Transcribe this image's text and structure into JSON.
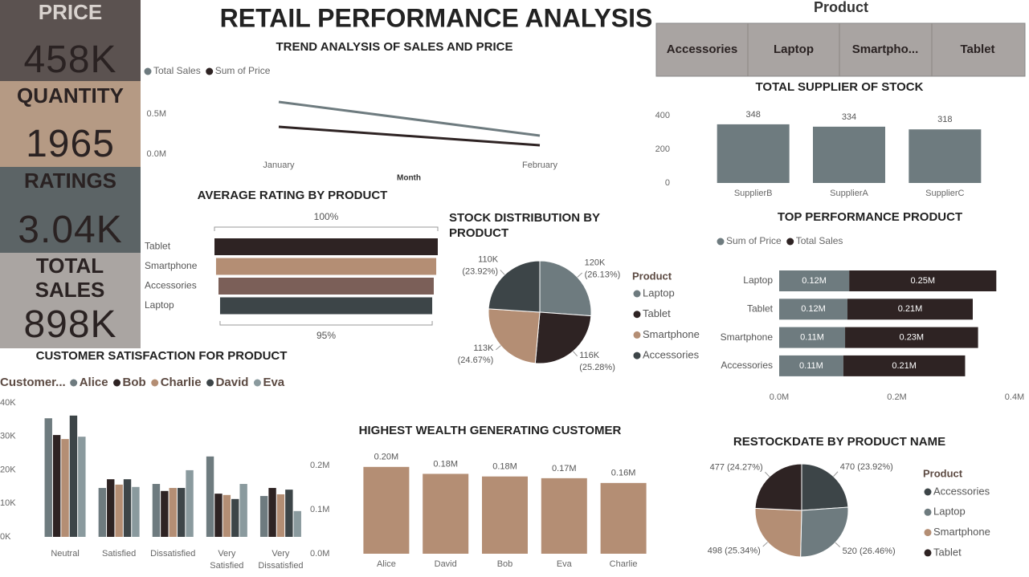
{
  "title": "RETAIL PERFORMANCE ANALYSIS",
  "kpis": [
    {
      "label": "PRICE",
      "value": "458K"
    },
    {
      "label": "QUANTITY",
      "value": "1965"
    },
    {
      "label": "RATINGS",
      "value": "3.04K"
    },
    {
      "label": "TOTAL SALES",
      "value": "898K"
    }
  ],
  "slicer": {
    "title": "Product",
    "items": [
      "Accessories",
      "Laptop",
      "Smartpho...",
      "Tablet"
    ]
  },
  "chart_data": [
    {
      "type": "line",
      "title": "TREND ANALYSIS OF SALES AND PRICE",
      "x_label": "Month",
      "categories": [
        "January",
        "February"
      ],
      "series": [
        {
          "name": "Total Sales",
          "color": "#6e7b7f",
          "values": [
            650000,
            230000
          ]
        },
        {
          "name": "Sum of Price",
          "color": "#2e2323",
          "values": [
            340000,
            110000
          ]
        }
      ],
      "ylim": [
        0,
        800000
      ],
      "yticks": [
        {
          "value": 0,
          "label": "0.0M"
        },
        {
          "value": 500000,
          "label": "0.5M"
        }
      ]
    },
    {
      "type": "funnel",
      "title": "AVERAGE RATING BY PRODUCT",
      "categories": [
        "Tablet",
        "Smartphone",
        "Accessories",
        "Laptop"
      ],
      "values": [
        100,
        98.6,
        96.4,
        95
      ],
      "value_labels": [
        "100%",
        null,
        null,
        "95%"
      ],
      "colors": [
        "#2e2323",
        "#b48e74",
        "#7b5f58",
        "#3d4548"
      ]
    },
    {
      "type": "pie",
      "title": "STOCK DISTRIBUTION BY PRODUCT",
      "legend_title": "Product",
      "categories": [
        "Laptop",
        "Tablet",
        "Smartphone",
        "Accessories"
      ],
      "values": [
        120000,
        116000,
        113000,
        110000
      ],
      "value_labels": [
        "120K",
        "116K",
        "113K",
        "110K"
      ],
      "percent_labels": [
        "(26.13%)",
        "(25.28%)",
        "(24.67%)",
        "(23.92%)"
      ],
      "colors": [
        "#6e7b7f",
        "#2e2323",
        "#b48e74",
        "#3d4548"
      ]
    },
    {
      "type": "bar",
      "title": "CUSTOMER SATISFACTION FOR PRODUCT",
      "legend_title": "Customer...",
      "categories": [
        "Neutral",
        "Satisfied",
        "Dissatisfied",
        "Very Satisfied",
        "Very Dissatisfied"
      ],
      "series": [
        {
          "name": "Alice",
          "color": "#6e7b7f",
          "values": [
            35400,
            14600,
            15800,
            24000,
            12200
          ]
        },
        {
          "name": "Bob",
          "color": "#2e2323",
          "values": [
            30400,
            17200,
            13700,
            12900,
            14600
          ]
        },
        {
          "name": "Charlie",
          "color": "#b48e74",
          "values": [
            29200,
            15600,
            14600,
            12500,
            12700
          ]
        },
        {
          "name": "David",
          "color": "#3d4548",
          "values": [
            36200,
            17200,
            14600,
            11300,
            14100
          ]
        },
        {
          "name": "Eva",
          "color": "#8a9a9e",
          "values": [
            29900,
            14900,
            19900,
            15800,
            7700
          ]
        }
      ],
      "ylim": [
        0,
        40000
      ],
      "yticks": [
        {
          "value": 0,
          "label": "0K"
        },
        {
          "value": 10000,
          "label": "10K"
        },
        {
          "value": 20000,
          "label": "20K"
        },
        {
          "value": 30000,
          "label": "30K"
        },
        {
          "value": 40000,
          "label": "40K"
        }
      ],
      "y2lim": [
        0,
        200000
      ],
      "y2ticks": [
        {
          "value": 0,
          "label": "0.0M"
        },
        {
          "value": 100000,
          "label": "0.1M"
        },
        {
          "value": 200000,
          "label": "0.2M"
        }
      ]
    },
    {
      "type": "bar",
      "title": "HIGHEST WEALTH GENERATING CUSTOMER",
      "categories": [
        "Alice",
        "David",
        "Bob",
        "Eva",
        "Charlie"
      ],
      "values": [
        200000,
        184000,
        178000,
        174000,
        163000
      ],
      "value_labels": [
        "0.20M",
        "0.18M",
        "0.18M",
        "0.17M",
        "0.16M"
      ],
      "color": "#b48e74",
      "ylim": [
        0,
        220000
      ]
    },
    {
      "type": "bar",
      "title": "TOTAL SUPPLIER OF STOCK",
      "categories": [
        "SupplierB",
        "SupplierA",
        "SupplierC"
      ],
      "values": [
        348,
        334,
        318
      ],
      "data_labels": true,
      "color": "#6e7b7f",
      "ylim": [
        0,
        400
      ],
      "yticks": [
        0,
        200,
        400
      ]
    },
    {
      "type": "barh",
      "title": "TOP PERFORMANCE PRODUCT",
      "stacked": true,
      "categories": [
        "Laptop",
        "Tablet",
        "Smartphone",
        "Accessories"
      ],
      "series": [
        {
          "name": "Sum of Price",
          "color": "#6e7b7f",
          "values": [
            119000,
            116000,
            112000,
            109000
          ],
          "value_labels": [
            "0.12M",
            "0.12M",
            "0.11M",
            "0.11M"
          ]
        },
        {
          "name": "Total Sales",
          "color": "#2e2323",
          "values": [
            250000,
            213000,
            226000,
            207000
          ],
          "value_labels": [
            "0.25M",
            "0.21M",
            "0.23M",
            "0.21M"
          ]
        }
      ],
      "xlim": [
        0,
        400000
      ],
      "xticks": [
        {
          "value": 0,
          "label": "0.0M"
        },
        {
          "value": 200000,
          "label": "0.2M"
        },
        {
          "value": 400000,
          "label": "0.4M"
        }
      ]
    },
    {
      "type": "pie",
      "title": "RESTOCKDATE BY PRODUCT NAME",
      "legend_title": "Product",
      "categories": [
        "Accessories",
        "Laptop",
        "Smartphone",
        "Tablet"
      ],
      "values": [
        470,
        520,
        498,
        477
      ],
      "percent_labels": [
        "(23.92%)",
        "(26.46%)",
        "(25.34%)",
        "(24.27%)"
      ],
      "colors": [
        "#3d4548",
        "#6e7b7f",
        "#b48e74",
        "#2e2323"
      ]
    }
  ]
}
